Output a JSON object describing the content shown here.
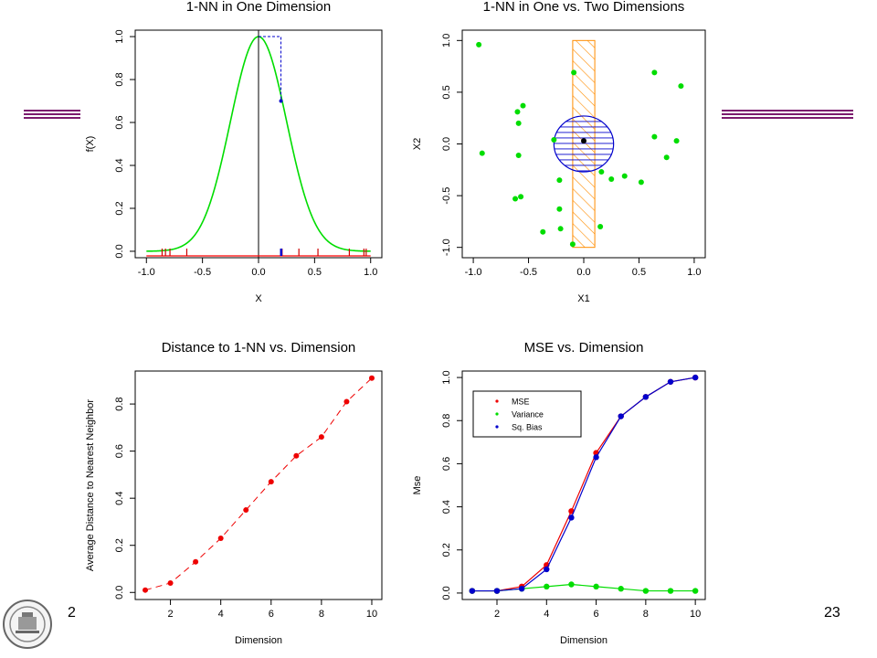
{
  "slide": {
    "page_number": "23",
    "left_corner_text": "2",
    "decor_color": "#7b1a6e"
  },
  "chart_data": [
    {
      "id": "top-left",
      "type": "line",
      "title": "1-NN in One Dimension",
      "xlabel": "X",
      "ylabel": "f(X)",
      "xlim": [
        -1.1,
        1.1
      ],
      "ylim": [
        -0.03,
        1.03
      ],
      "xticks": [
        -1.0,
        -0.5,
        0.0,
        0.5,
        1.0
      ],
      "xtick_labels": [
        "-1.0",
        "-0.5",
        "0.0",
        "0.5",
        "1.0"
      ],
      "yticks": [
        0.0,
        0.2,
        0.4,
        0.6,
        0.8,
        1.0
      ],
      "ytick_labels": [
        "0.0",
        "0.2",
        "0.4",
        "0.6",
        "0.8",
        "1.0"
      ],
      "curve": {
        "function": "exp(-8*x^2)",
        "x_range": [
          -1.0,
          1.0
        ],
        "color": "#00dd00"
      },
      "vertical_line_x": 0.0,
      "target_point": {
        "x": 0.2,
        "y": 0.7
      },
      "dashed_box": {
        "x0": 0.0,
        "x1": 0.2,
        "y0": 0.7,
        "y1": 1.0,
        "color": "#0000cc"
      },
      "red_rug_x": [
        -0.86,
        -0.83,
        -0.79,
        -0.64,
        0.21,
        0.36,
        0.53,
        0.81,
        0.94,
        0.96
      ],
      "blue_rug_x": [
        0.21
      ],
      "baseline_color": "#ff0000"
    },
    {
      "id": "top-right",
      "type": "scatter",
      "title": "1-NN in One vs. Two Dimensions",
      "xlabel": "X1",
      "ylabel": "X2",
      "xlim": [
        -1.1,
        1.1
      ],
      "ylim": [
        -1.1,
        1.1
      ],
      "xticks": [
        -1.0,
        -0.5,
        0.0,
        0.5,
        1.0
      ],
      "xtick_labels": [
        "-1.0",
        "-0.5",
        "0.0",
        "0.5",
        "1.0"
      ],
      "yticks": [
        -1.0,
        -0.5,
        0.0,
        0.5,
        1.0
      ],
      "ytick_labels": [
        "-1.0",
        "-0.5",
        "0.0",
        "0.5",
        "1.0"
      ],
      "points": [
        [
          -0.95,
          0.96
        ],
        [
          -0.92,
          -0.09
        ],
        [
          -0.6,
          0.31
        ],
        [
          -0.59,
          0.2
        ],
        [
          -0.55,
          0.37
        ],
        [
          -0.59,
          -0.11
        ],
        [
          -0.62,
          -0.53
        ],
        [
          -0.57,
          -0.51
        ],
        [
          -0.27,
          0.04
        ],
        [
          -0.22,
          -0.35
        ],
        [
          -0.22,
          -0.63
        ],
        [
          -0.21,
          -0.82
        ],
        [
          -0.37,
          -0.85
        ],
        [
          -0.09,
          0.69
        ],
        [
          -0.1,
          -0.97
        ],
        [
          0.15,
          -0.8
        ],
        [
          0.16,
          -0.27
        ],
        [
          0.25,
          -0.34
        ],
        [
          0.37,
          -0.31
        ],
        [
          0.52,
          -0.37
        ],
        [
          0.64,
          0.69
        ],
        [
          0.64,
          0.07
        ],
        [
          0.75,
          -0.13
        ],
        [
          0.84,
          0.03
        ],
        [
          0.88,
          0.56
        ]
      ],
      "point_color": "#00dd00",
      "center_point": [
        0.0,
        0.03
      ],
      "strip": {
        "x0": -0.1,
        "x1": 0.1,
        "y0": -1.0,
        "y1": 1.0,
        "color": "#ff8c00"
      },
      "circle": {
        "cx": 0.0,
        "cy": 0.0,
        "r": 0.27,
        "color": "#0000cc"
      }
    },
    {
      "id": "bottom-left",
      "type": "scatter",
      "title": "Distance to 1-NN vs. Dimension",
      "xlabel": "Dimension",
      "ylabel": "Average Distance to Nearest Neighbor",
      "xlim": [
        0.6,
        10.4
      ],
      "ylim": [
        -0.03,
        0.94
      ],
      "xticks": [
        2,
        4,
        6,
        8,
        10
      ],
      "xtick_labels": [
        "2",
        "4",
        "6",
        "8",
        "10"
      ],
      "yticks": [
        0.0,
        0.2,
        0.4,
        0.6,
        0.8
      ],
      "ytick_labels": [
        "0.0",
        "0.2",
        "0.4",
        "0.6",
        "0.8"
      ],
      "x": [
        1,
        2,
        3,
        4,
        5,
        6,
        7,
        8,
        9,
        10
      ],
      "values": [
        0.01,
        0.04,
        0.13,
        0.23,
        0.35,
        0.47,
        0.58,
        0.66,
        0.81,
        0.91
      ],
      "point_color": "#ee0000",
      "line_style": "dashed"
    },
    {
      "id": "bottom-right",
      "type": "line",
      "title": "MSE vs. Dimension",
      "xlabel": "Dimension",
      "ylabel": "Mse",
      "xlim": [
        0.6,
        10.4
      ],
      "ylim": [
        -0.03,
        1.03
      ],
      "xticks": [
        2,
        4,
        6,
        8,
        10
      ],
      "xtick_labels": [
        "2",
        "4",
        "6",
        "8",
        "10"
      ],
      "yticks": [
        0.0,
        0.2,
        0.4,
        0.6,
        0.8,
        1.0
      ],
      "ytick_labels": [
        "0.0",
        "0.2",
        "0.4",
        "0.6",
        "0.8",
        "1.0"
      ],
      "x": [
        1,
        2,
        3,
        4,
        5,
        6,
        7,
        8,
        9,
        10
      ],
      "series": [
        {
          "name": "MSE",
          "color": "#ee0000",
          "values": [
            0.01,
            0.01,
            0.03,
            0.13,
            0.38,
            0.65,
            0.82,
            0.91,
            0.98,
            1.0
          ]
        },
        {
          "name": "Variance",
          "color": "#00dd00",
          "values": [
            0.01,
            0.01,
            0.02,
            0.03,
            0.04,
            0.03,
            0.02,
            0.01,
            0.01,
            0.01
          ]
        },
        {
          "name": "Sq. Bias",
          "color": "#0000cc",
          "values": [
            0.01,
            0.01,
            0.02,
            0.11,
            0.35,
            0.63,
            0.82,
            0.91,
            0.98,
            1.0
          ]
        }
      ],
      "legend_position": "top-left"
    }
  ]
}
